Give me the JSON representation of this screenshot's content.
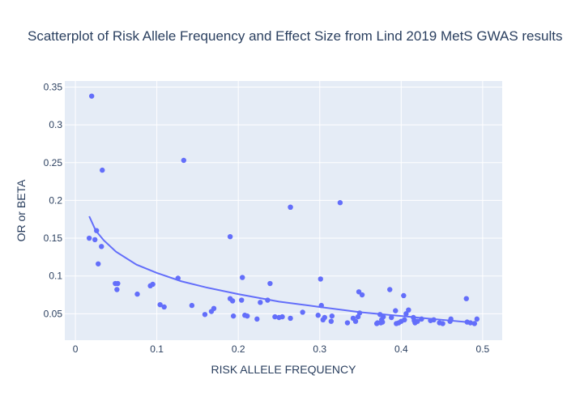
{
  "chart_data": {
    "type": "scatter",
    "title": "Scatterplot of Risk Allele Frequency and Effect Size from Lind 2019 MetS GWAS results",
    "xlabel": "RISK ALLELE FREQUENCY",
    "ylabel": "OR or BETA",
    "xlim": [
      -0.013,
      0.524
    ],
    "ylim": [
      0.015,
      0.358
    ],
    "x_ticks": [
      0,
      0.1,
      0.2,
      0.3,
      0.4,
      0.5
    ],
    "x_tick_labels": [
      "0",
      "0.1",
      "0.2",
      "0.3",
      "0.4",
      "0.5"
    ],
    "y_ticks": [
      0.05,
      0.1,
      0.15,
      0.2,
      0.25,
      0.3,
      0.35
    ],
    "y_tick_labels": [
      "0.05",
      "0.1",
      "0.15",
      "0.2",
      "0.25",
      "0.3",
      "0.35"
    ],
    "grid": true,
    "colors": {
      "plot_bg": "#e5ecf6",
      "grid": "#ffffff",
      "marker": "#636efa",
      "line": "#636efa",
      "text": "#2a3f5f"
    },
    "series": [
      {
        "mode": "markers",
        "x": [
          0.02,
          0.033,
          0.133,
          0.264,
          0.325,
          0.19,
          0.017,
          0.024,
          0.026,
          0.032,
          0.028,
          0.049,
          0.052,
          0.051,
          0.076,
          0.092,
          0.095,
          0.104,
          0.109,
          0.126,
          0.143,
          0.159,
          0.167,
          0.17,
          0.19,
          0.193,
          0.194,
          0.204,
          0.205,
          0.208,
          0.211,
          0.223,
          0.227,
          0.236,
          0.239,
          0.245,
          0.25,
          0.254,
          0.264,
          0.264,
          0.279,
          0.298,
          0.301,
          0.302,
          0.304,
          0.306,
          0.314,
          0.315,
          0.334,
          0.341,
          0.344,
          0.347,
          0.348,
          0.349,
          0.352,
          0.37,
          0.371,
          0.374,
          0.375,
          0.376,
          0.377,
          0.378,
          0.386,
          0.388,
          0.393,
          0.394,
          0.397,
          0.4,
          0.403,
          0.404,
          0.406,
          0.409,
          0.415,
          0.416,
          0.417,
          0.42,
          0.425,
          0.436,
          0.44,
          0.447,
          0.451,
          0.46,
          0.461,
          0.48,
          0.481,
          0.485,
          0.49,
          0.493
        ],
        "y": [
          0.338,
          0.24,
          0.253,
          0.191,
          0.197,
          0.152,
          0.15,
          0.148,
          0.16,
          0.139,
          0.116,
          0.09,
          0.09,
          0.082,
          0.076,
          0.087,
          0.089,
          0.062,
          0.059,
          0.097,
          0.061,
          0.049,
          0.053,
          0.057,
          0.07,
          0.067,
          0.047,
          0.068,
          0.098,
          0.048,
          0.047,
          0.043,
          0.065,
          0.068,
          0.09,
          0.046,
          0.045,
          0.046,
          0.191,
          0.044,
          0.052,
          0.048,
          0.096,
          0.061,
          0.042,
          0.045,
          0.04,
          0.047,
          0.038,
          0.044,
          0.04,
          0.046,
          0.079,
          0.051,
          0.075,
          0.037,
          0.038,
          0.049,
          0.038,
          0.042,
          0.039,
          0.046,
          0.082,
          0.045,
          0.054,
          0.037,
          0.038,
          0.04,
          0.074,
          0.042,
          0.05,
          0.055,
          0.045,
          0.041,
          0.038,
          0.04,
          0.043,
          0.041,
          0.042,
          0.038,
          0.037,
          0.04,
          0.043,
          0.07,
          0.039,
          0.038,
          0.037,
          0.043
        ]
      },
      {
        "mode": "lines",
        "x": [
          0.017,
          0.025,
          0.035,
          0.05,
          0.075,
          0.1,
          0.13,
          0.16,
          0.2,
          0.25,
          0.3,
          0.35,
          0.4,
          0.45,
          0.49
        ],
        "y": [
          0.179,
          0.16,
          0.147,
          0.132,
          0.115,
          0.104,
          0.093,
          0.085,
          0.076,
          0.066,
          0.059,
          0.052,
          0.047,
          0.042,
          0.038
        ]
      }
    ]
  }
}
